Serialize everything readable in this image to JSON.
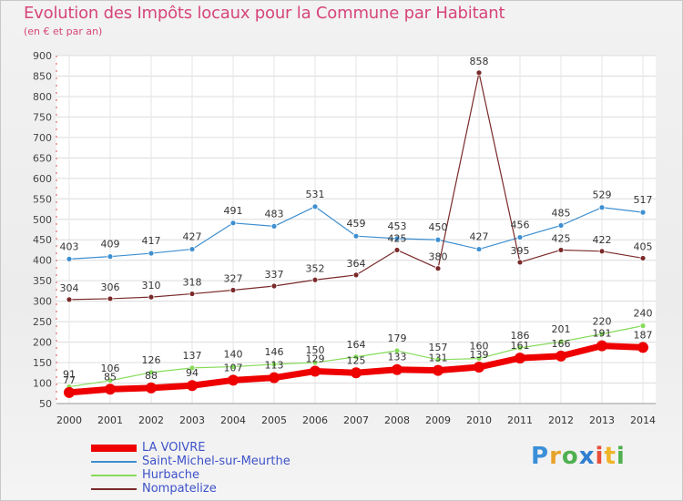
{
  "title": "Evolution des Impôts locaux pour la Commune par Habitant",
  "subtitle": "(en € et par an)",
  "brand": {
    "letters": [
      "P",
      "r",
      "o",
      "x",
      "i",
      "t",
      "i"
    ],
    "colors": [
      "#3a8fd9",
      "#e8a32c",
      "#4fb04f",
      "#2f7fd0",
      "#e94d3b",
      "#f0b429",
      "#4fb04f"
    ]
  },
  "chart_data": {
    "type": "line",
    "title": "Evolution des Impôts locaux pour la Commune par Habitant",
    "subtitle": "(en € et par an)",
    "x": [
      "2000",
      "2001",
      "2002",
      "2003",
      "2004",
      "2005",
      "2006",
      "2007",
      "2008",
      "2009",
      "2010",
      "2011",
      "2012",
      "2013",
      "2014"
    ],
    "ylim": [
      50,
      900
    ],
    "yticks": [
      50,
      100,
      150,
      200,
      250,
      300,
      350,
      400,
      450,
      500,
      550,
      600,
      650,
      700,
      750,
      800,
      850,
      900
    ],
    "grid": true,
    "legend_position": "bottom-left",
    "series": [
      {
        "name": "LA VOIVRE",
        "color": "#ee0000",
        "values": [
          77,
          85,
          88,
          94,
          107,
          113,
          129,
          125,
          133,
          131,
          139,
          161,
          166,
          191,
          187
        ]
      },
      {
        "name": "Saint-Michel-sur-Meurthe",
        "color": "#3e8fd0",
        "values": [
          403,
          409,
          417,
          427,
          491,
          483,
          531,
          459,
          453,
          450,
          427,
          456,
          485,
          529,
          517
        ]
      },
      {
        "name": "Hurbache",
        "color": "#86dc5a",
        "values": [
          91,
          106,
          126,
          137,
          140,
          146,
          150,
          164,
          179,
          157,
          160,
          186,
          201,
          220,
          240
        ]
      },
      {
        "name": "Nompatelize",
        "color": "#7a2a2a",
        "values": [
          304,
          306,
          310,
          318,
          327,
          337,
          352,
          364,
          425,
          380,
          858,
          395,
          425,
          422,
          405
        ]
      }
    ]
  }
}
